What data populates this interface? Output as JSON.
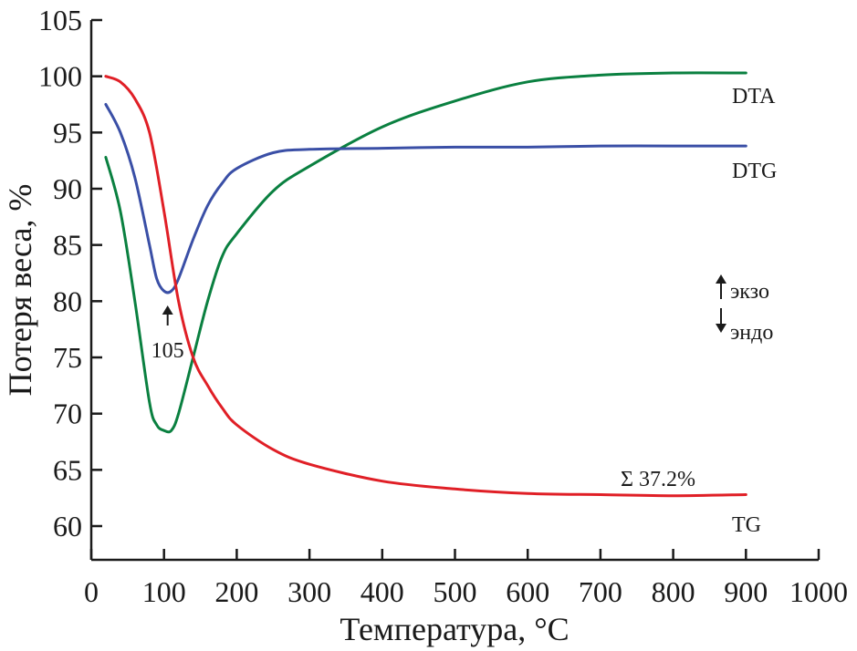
{
  "chart_data": {
    "type": "line",
    "title": "",
    "xlabel": "Температура, °C",
    "ylabel": "Потеря веса, %",
    "xlim": [
      0,
      1000
    ],
    "ylim": [
      57,
      105
    ],
    "x_ticks": [
      0,
      100,
      200,
      300,
      400,
      500,
      600,
      700,
      800,
      900,
      1000
    ],
    "y_ticks": [
      60,
      65,
      70,
      75,
      80,
      85,
      90,
      95,
      100,
      105
    ],
    "grid": false,
    "series": [
      {
        "name": "DTA",
        "color": "#0a8040",
        "x": [
          20,
          40,
          60,
          80,
          90,
          100,
          110,
          120,
          140,
          160,
          180,
          200,
          250,
          300,
          400,
          500,
          600,
          700,
          800,
          900
        ],
        "y": [
          92.8,
          88.0,
          80.0,
          71.0,
          69.0,
          68.5,
          68.5,
          70.0,
          75.0,
          80.0,
          84.0,
          86.0,
          89.8,
          92.0,
          95.5,
          97.8,
          99.5,
          100.1,
          100.3,
          100.3
        ]
      },
      {
        "name": "DTG",
        "color": "#3a4fa6",
        "x": [
          20,
          40,
          60,
          80,
          90,
          100,
          110,
          120,
          140,
          160,
          180,
          200,
          250,
          300,
          400,
          500,
          600,
          700,
          800,
          900
        ],
        "y": [
          97.5,
          95.0,
          91.0,
          85.0,
          82.0,
          80.9,
          80.9,
          82.0,
          85.5,
          88.5,
          90.5,
          91.8,
          93.2,
          93.5,
          93.6,
          93.7,
          93.7,
          93.8,
          93.8,
          93.8
        ]
      },
      {
        "name": "TG",
        "color": "#e01f26",
        "x": [
          20,
          40,
          60,
          80,
          100,
          120,
          140,
          160,
          180,
          200,
          250,
          300,
          400,
          500,
          600,
          700,
          800,
          900
        ],
        "y": [
          100.0,
          99.5,
          98.0,
          95.0,
          88.0,
          80.0,
          75.0,
          72.5,
          70.5,
          69.0,
          66.8,
          65.5,
          64.0,
          63.3,
          62.9,
          62.8,
          62.7,
          62.8
        ]
      }
    ],
    "series_labels": [
      {
        "text": "DTA",
        "series": "DTA"
      },
      {
        "text": "DTG",
        "series": "DTG"
      },
      {
        "text": "TG",
        "series": "TG"
      }
    ],
    "annotations": {
      "peak_label": "105",
      "peak_x": 105,
      "total_loss": "Σ 37.2%",
      "exo": "экзо",
      "endo": "эндо"
    }
  }
}
